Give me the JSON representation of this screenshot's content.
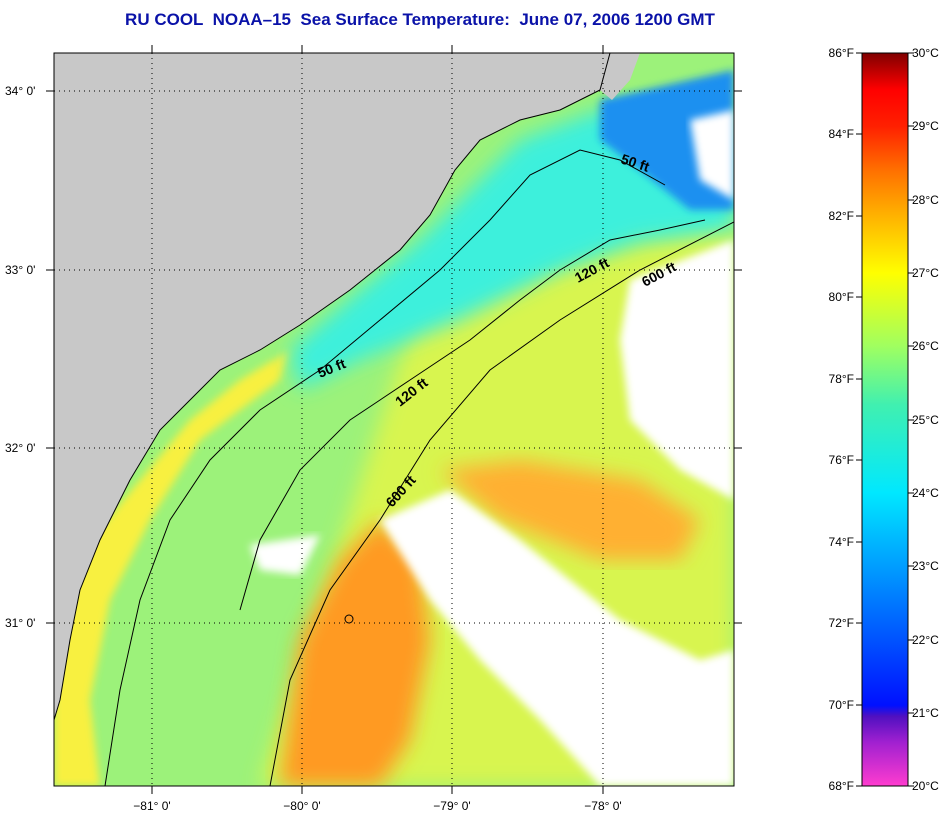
{
  "title": "RU COOL  NOAA–15  Sea Surface Temperature:  June 07, 2006 1200 GMT",
  "map": {
    "lat_labels": [
      "34° 0'",
      "33° 0'",
      "32° 0'",
      "31° 0'"
    ],
    "lon_labels": [
      "−81° 0'",
      "−80° 0'",
      "−79° 0'",
      "−78° 0'"
    ],
    "contour_labels": {
      "c50_north": "50 ft",
      "c50_south": "50 ft",
      "c120_north": "120 ft",
      "c120_south": "120 ft",
      "c600_north": "600 ft",
      "c600_south": "600 ft"
    },
    "land_color": "#c8c8c8",
    "cloud_color": "#ffffff"
  },
  "colorbar": {
    "fahrenheit_labels": [
      "86°F",
      "84°F",
      "82°F",
      "80°F",
      "78°F",
      "76°F",
      "74°F",
      "72°F",
      "70°F",
      "68°F"
    ],
    "celsius_labels": [
      "30°C",
      "29°C",
      "28°C",
      "27°C",
      "26°C",
      "25°C",
      "24°C",
      "23°C",
      "22°C",
      "21°C",
      "20°C"
    ],
    "range_f": [
      68,
      86
    ],
    "range_c": [
      20,
      30
    ]
  }
}
